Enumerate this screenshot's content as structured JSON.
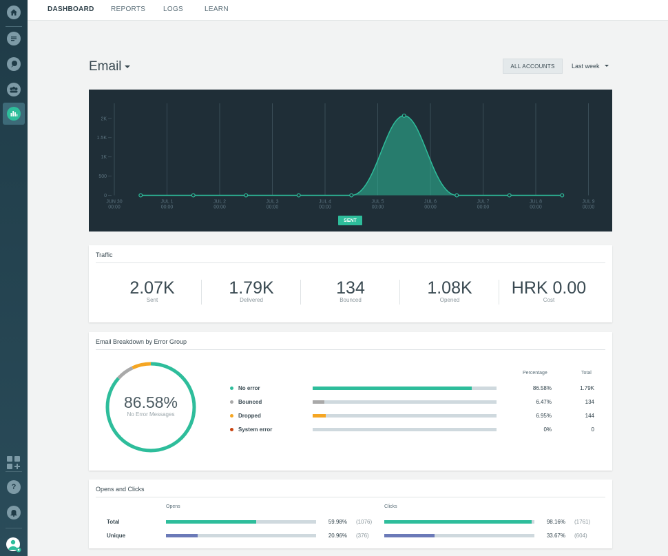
{
  "nav": {
    "items": [
      "DASHBOARD",
      "REPORTS",
      "LOGS",
      "LEARN"
    ],
    "active": "DASHBOARD"
  },
  "sidebar": {
    "items": [
      "home-icon",
      "messages-icon",
      "conversations-icon",
      "people-icon",
      "analytics-icon"
    ],
    "bottom": [
      "apps-add-icon",
      "help-icon",
      "notifications-icon",
      "user-icon"
    ],
    "help_glyph": "?"
  },
  "header": {
    "title": "Email",
    "accounts_button": "ALL ACCOUNTS",
    "period": "Last week"
  },
  "chart_data": {
    "type": "area",
    "series": [
      {
        "name": "SENT",
        "x": [
          "2023-06-30T00:00",
          "2023-06-30T12:00",
          "2023-07-01T00:00",
          "2023-07-01T12:00",
          "2023-07-02T00:00",
          "2023-07-02T12:00",
          "2023-07-03T00:00",
          "2023-07-03T12:00",
          "2023-07-04T00:00",
          "2023-07-04T12:00",
          "2023-07-05T00:00",
          "2023-07-05T12:00",
          "2023-07-06T00:00",
          "2023-07-06T12:00",
          "2023-07-07T00:00",
          "2023-07-07T12:00",
          "2023-07-08T00:00",
          "2023-07-08T12:00",
          "2023-07-09T00:00"
        ],
        "values": [
          null,
          0,
          null,
          0,
          null,
          0,
          null,
          0,
          null,
          0,
          null,
          2070,
          null,
          0,
          null,
          0,
          null,
          0,
          null
        ]
      }
    ],
    "xticks": [
      {
        "date": "JUN 30",
        "time": "00:00"
      },
      {
        "date": "JUL 1",
        "time": "00:00"
      },
      {
        "date": "JUL 2",
        "time": "00:00"
      },
      {
        "date": "JUL 3",
        "time": "00:00"
      },
      {
        "date": "JUL 4",
        "time": "00:00"
      },
      {
        "date": "JUL 5",
        "time": "00:00"
      },
      {
        "date": "JUL 6",
        "time": "00:00"
      },
      {
        "date": "JUL 7",
        "time": "00:00"
      },
      {
        "date": "JUL 8",
        "time": "00:00"
      },
      {
        "date": "JUL 9",
        "time": "00:00"
      }
    ],
    "yticks": [
      "0",
      "500",
      "1K",
      "1.5K",
      "2K"
    ],
    "ylim": [
      0,
      2300
    ],
    "legend": "SENT",
    "grid": true,
    "colors": {
      "background": "#1f2e37",
      "series": "#2ebd9b",
      "grid": "#3a4d57",
      "tick": "#5d7480"
    }
  },
  "traffic": {
    "title": "Traffic",
    "stats": [
      {
        "value": "2.07K",
        "label": "Sent"
      },
      {
        "value": "1.79K",
        "label": "Delivered"
      },
      {
        "value": "134",
        "label": "Bounced"
      },
      {
        "value": "1.08K",
        "label": "Opened"
      },
      {
        "value": "HRK 0.00",
        "label": "Cost"
      }
    ]
  },
  "breakdown": {
    "title": "Email Breakdown by Error Group",
    "donut_value": "86.58%",
    "donut_label": "No Error Messages",
    "col_percentage": "Percentage",
    "col_total": "Total",
    "rows": [
      {
        "label": "No error",
        "color": "#2ebd9b",
        "fill": 0.8658,
        "pct": "86.58%",
        "total": "1.79K"
      },
      {
        "label": "Bounced",
        "color": "#a9a9a9",
        "fill": 0.0647,
        "pct": "6.47%",
        "total": "134"
      },
      {
        "label": "Dropped",
        "color": "#f5a623",
        "fill": 0.0695,
        "pct": "6.95%",
        "total": "144"
      },
      {
        "label": "System error",
        "color": "#c9430f",
        "fill": 0,
        "pct": "0%",
        "total": "0"
      }
    ]
  },
  "opens_clicks": {
    "title": "Opens and Clicks",
    "col_opens": "Opens",
    "col_clicks": "Clicks",
    "rows": [
      {
        "label": "Total",
        "opens_fill": 0.5998,
        "opens_pct": "59.98%",
        "opens_count": "(1076)",
        "opens_color": "#2ebd9b",
        "clicks_fill": 0.9816,
        "clicks_pct": "98.16%",
        "clicks_count": "(1761)",
        "clicks_color": "#2ebd9b"
      },
      {
        "label": "Unique",
        "opens_fill": 0.2096,
        "opens_pct": "20.96%",
        "opens_count": "(376)",
        "opens_color": "#6b7ab8",
        "clicks_fill": 0.3367,
        "clicks_pct": "33.67%",
        "clicks_count": "(604)",
        "clicks_color": "#6b7ab8"
      }
    ]
  }
}
